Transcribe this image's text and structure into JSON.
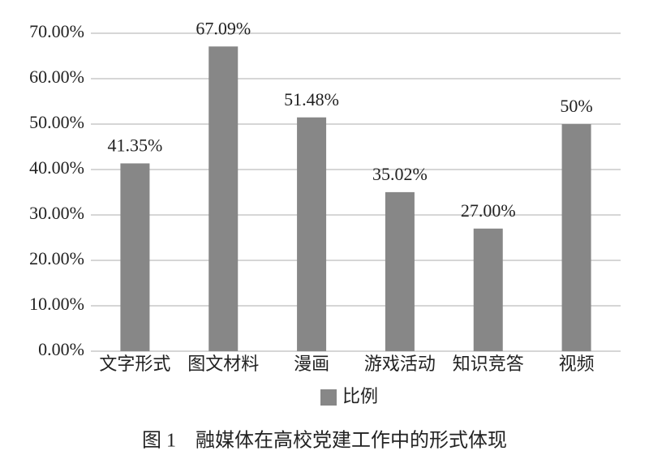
{
  "chart_data": {
    "type": "bar",
    "title": "图 1　融媒体在高校党建工作中的形式体现",
    "categories": [
      "文字形式",
      "图文材料",
      "漫画",
      "游戏活动",
      "知识竞答",
      "视频"
    ],
    "series": [
      {
        "name": "比例",
        "color": "#878787",
        "values": [
          41.35,
          67.09,
          51.48,
          35.02,
          27.0,
          50
        ],
        "value_labels": [
          "41.35%",
          "67.09%",
          "51.48%",
          "35.02%",
          "27.00%",
          "50%"
        ]
      }
    ],
    "ylim": [
      0,
      70
    ],
    "yticks": [
      {
        "value": 0,
        "label": "0.00%"
      },
      {
        "value": 10,
        "label": "10.00%"
      },
      {
        "value": 20,
        "label": "20.00%"
      },
      {
        "value": 30,
        "label": "30.00%"
      },
      {
        "value": 40,
        "label": "40.00%"
      },
      {
        "value": 50,
        "label": "50.00%"
      },
      {
        "value": 60,
        "label": "60.00%"
      },
      {
        "value": 70,
        "label": "70.00%"
      }
    ],
    "grid": true,
    "legend": "bottom"
  }
}
